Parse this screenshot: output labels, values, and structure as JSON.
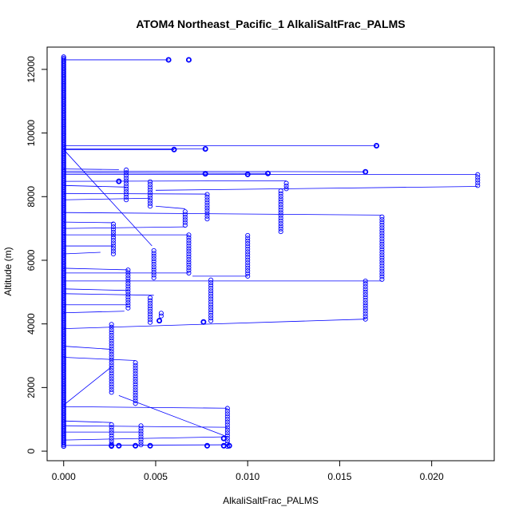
{
  "chart_data": {
    "type": "scatter",
    "title": "ATOM4 Northeast_Pacific_1 AlkaliSaltFrac_PALMS",
    "xlabel": "AlkaliSaltFrac_PALMS",
    "ylabel": "Altitude (m)",
    "xlim": [
      -0.0009,
      0.0234
    ],
    "ylim": [
      -300,
      12700
    ],
    "x_ticks": [
      0.0,
      0.005,
      0.01,
      0.015,
      0.02
    ],
    "x_tick_labels": [
      "0.000",
      "0.005",
      "0.010",
      "0.015",
      "0.020"
    ],
    "y_ticks": [
      0,
      2000,
      4000,
      6000,
      8000,
      10000,
      12000
    ],
    "y_tick_labels": [
      "0",
      "2000",
      "4000",
      "6000",
      "8000",
      "10000",
      "12000"
    ],
    "grid": false,
    "legend": "none",
    "series_color": "#0000ff",
    "columns": [
      {
        "x": 0.0026,
        "y0": 1850,
        "y1": 4050
      },
      {
        "x": 0.0039,
        "y0": 1500,
        "y1": 2850
      },
      {
        "x": 0.0027,
        "y0": 6200,
        "y1": 7200
      },
      {
        "x": 0.0035,
        "y0": 4500,
        "y1": 5700
      },
      {
        "x": 0.0049,
        "y0": 5450,
        "y1": 6350
      },
      {
        "x": 0.0068,
        "y0": 5600,
        "y1": 6800
      },
      {
        "x": 0.0066,
        "y0": 7100,
        "y1": 7600
      },
      {
        "x": 0.0078,
        "y0": 7300,
        "y1": 8100
      },
      {
        "x": 0.008,
        "y0": 4100,
        "y1": 5400
      },
      {
        "x": 0.01,
        "y0": 5500,
        "y1": 6800
      },
      {
        "x": 0.0118,
        "y0": 6900,
        "y1": 8200
      },
      {
        "x": 0.0121,
        "y0": 8250,
        "y1": 8500
      },
      {
        "x": 0.0164,
        "y0": 4150,
        "y1": 5400
      },
      {
        "x": 0.0173,
        "y0": 5400,
        "y1": 7400
      },
      {
        "x": 0.0225,
        "y0": 8350,
        "y1": 8700
      },
      {
        "x": 0.0089,
        "y0": 150,
        "y1": 1350
      },
      {
        "x": 0.0026,
        "y0": 150,
        "y1": 900
      },
      {
        "x": 0.0042,
        "y0": 200,
        "y1": 800
      },
      {
        "x": 0.0047,
        "y0": 4050,
        "y1": 4900
      },
      {
        "x": 0.0034,
        "y0": 7900,
        "y1": 8850
      },
      {
        "x": 0.0047,
        "y0": 7700,
        "y1": 8500
      },
      {
        "x": 0.0053,
        "y0": 4250,
        "y1": 4400
      }
    ],
    "clusters": [
      {
        "x": 0.0057,
        "y": 12300
      },
      {
        "x": 0.0068,
        "y": 12300
      },
      {
        "x": 0.006,
        "y": 9480
      },
      {
        "x": 0.0077,
        "y": 9500
      },
      {
        "x": 0.017,
        "y": 9600
      },
      {
        "x": 0.0077,
        "y": 8720
      },
      {
        "x": 0.01,
        "y": 8700
      },
      {
        "x": 0.0111,
        "y": 8730
      },
      {
        "x": 0.0164,
        "y": 8780
      },
      {
        "x": 0.003,
        "y": 8480
      },
      {
        "x": 0.0052,
        "y": 4100
      },
      {
        "x": 0.0076,
        "y": 4060
      },
      {
        "x": 0.003,
        "y": 170
      },
      {
        "x": 0.0039,
        "y": 170
      },
      {
        "x": 0.0078,
        "y": 170
      },
      {
        "x": 0.0087,
        "y": 170
      },
      {
        "x": 0.009,
        "y": 170
      },
      {
        "x": 0.0087,
        "y": 400
      },
      {
        "x": 0.0047,
        "y": 170
      },
      {
        "x": 0.0026,
        "y": 170
      }
    ],
    "lines": [
      {
        "x1": 0.0,
        "y1": 12300,
        "x2": 0.0057,
        "y2": 12300
      },
      {
        "x1": 0.0,
        "y1": 9600,
        "x2": 0.017,
        "y2": 9600
      },
      {
        "x1": 0.0,
        "y1": 9500,
        "x2": 0.0077,
        "y2": 9500
      },
      {
        "x1": 0.0,
        "y1": 9480,
        "x2": 0.006,
        "y2": 9480
      },
      {
        "x1": 0.0,
        "y1": 9480,
        "x2": 0.0048,
        "y2": 6450
      },
      {
        "x1": 0.0,
        "y1": 8870,
        "x2": 0.003,
        "y2": 8850
      },
      {
        "x1": 0.0,
        "y1": 8800,
        "x2": 0.0164,
        "y2": 8780
      },
      {
        "x1": 0.0,
        "y1": 8750,
        "x2": 0.0111,
        "y2": 8730
      },
      {
        "x1": 0.0,
        "y1": 8700,
        "x2": 0.0225,
        "y2": 8700
      },
      {
        "x1": 0.0,
        "y1": 8480,
        "x2": 0.0121,
        "y2": 8500
      },
      {
        "x1": 0.0,
        "y1": 8350,
        "x2": 0.0034,
        "y2": 8300
      },
      {
        "x1": 0.005,
        "y1": 8200,
        "x2": 0.0225,
        "y2": 8320
      },
      {
        "x1": 0.0,
        "y1": 8100,
        "x2": 0.0078,
        "y2": 8080
      },
      {
        "x1": 0.0,
        "y1": 7900,
        "x2": 0.0047,
        "y2": 7950
      },
      {
        "x1": 0.005,
        "y1": 7700,
        "x2": 0.0066,
        "y2": 7620
      },
      {
        "x1": 0.0,
        "y1": 7500,
        "x2": 0.0173,
        "y2": 7420
      },
      {
        "x1": 0.0,
        "y1": 7200,
        "x2": 0.0027,
        "y2": 7180
      },
      {
        "x1": 0.0,
        "y1": 7000,
        "x2": 0.0066,
        "y2": 7050
      },
      {
        "x1": 0.0,
        "y1": 6800,
        "x2": 0.0068,
        "y2": 6800
      },
      {
        "x1": 0.0,
        "y1": 6450,
        "x2": 0.0027,
        "y2": 6450
      },
      {
        "x1": 0.0,
        "y1": 6200,
        "x2": 0.002,
        "y2": 6250
      },
      {
        "x1": 0.0,
        "y1": 5750,
        "x2": 0.0035,
        "y2": 5700
      },
      {
        "x1": 0.0,
        "y1": 5600,
        "x2": 0.0068,
        "y2": 5600
      },
      {
        "x1": 0.007,
        "y1": 5500,
        "x2": 0.01,
        "y2": 5500
      },
      {
        "x1": 0.0,
        "y1": 5350,
        "x2": 0.0173,
        "y2": 5350
      },
      {
        "x1": 0.0,
        "y1": 5100,
        "x2": 0.0035,
        "y2": 5050
      },
      {
        "x1": 0.0,
        "y1": 4950,
        "x2": 0.0049,
        "y2": 4900
      },
      {
        "x1": 0.0,
        "y1": 4600,
        "x2": 0.0035,
        "y2": 4600
      },
      {
        "x1": 0.0,
        "y1": 4350,
        "x2": 0.0033,
        "y2": 4400
      },
      {
        "x1": 0.0,
        "y1": 3850,
        "x2": 0.0164,
        "y2": 4150
      },
      {
        "x1": 0.0,
        "y1": 3300,
        "x2": 0.0026,
        "y2": 3200
      },
      {
        "x1": 0.0,
        "y1": 2950,
        "x2": 0.0039,
        "y2": 2850
      },
      {
        "x1": 0.0,
        "y1": 1450,
        "x2": 0.0026,
        "y2": 2650
      },
      {
        "x1": 0.0,
        "y1": 1400,
        "x2": 0.0089,
        "y2": 1350
      },
      {
        "x1": 0.003,
        "y1": 1750,
        "x2": 0.0089,
        "y2": 450
      },
      {
        "x1": 0.0,
        "y1": 950,
        "x2": 0.0026,
        "y2": 900
      },
      {
        "x1": 0.0,
        "y1": 800,
        "x2": 0.0089,
        "y2": 750
      },
      {
        "x1": 0.0,
        "y1": 600,
        "x2": 0.0042,
        "y2": 600
      },
      {
        "x1": 0.0,
        "y1": 350,
        "x2": 0.0087,
        "y2": 450
      },
      {
        "x1": 0.0,
        "y1": 180,
        "x2": 0.0089,
        "y2": 200
      }
    ],
    "base_column": {
      "x": 0.0,
      "y0": 150,
      "y1": 12400
    }
  }
}
